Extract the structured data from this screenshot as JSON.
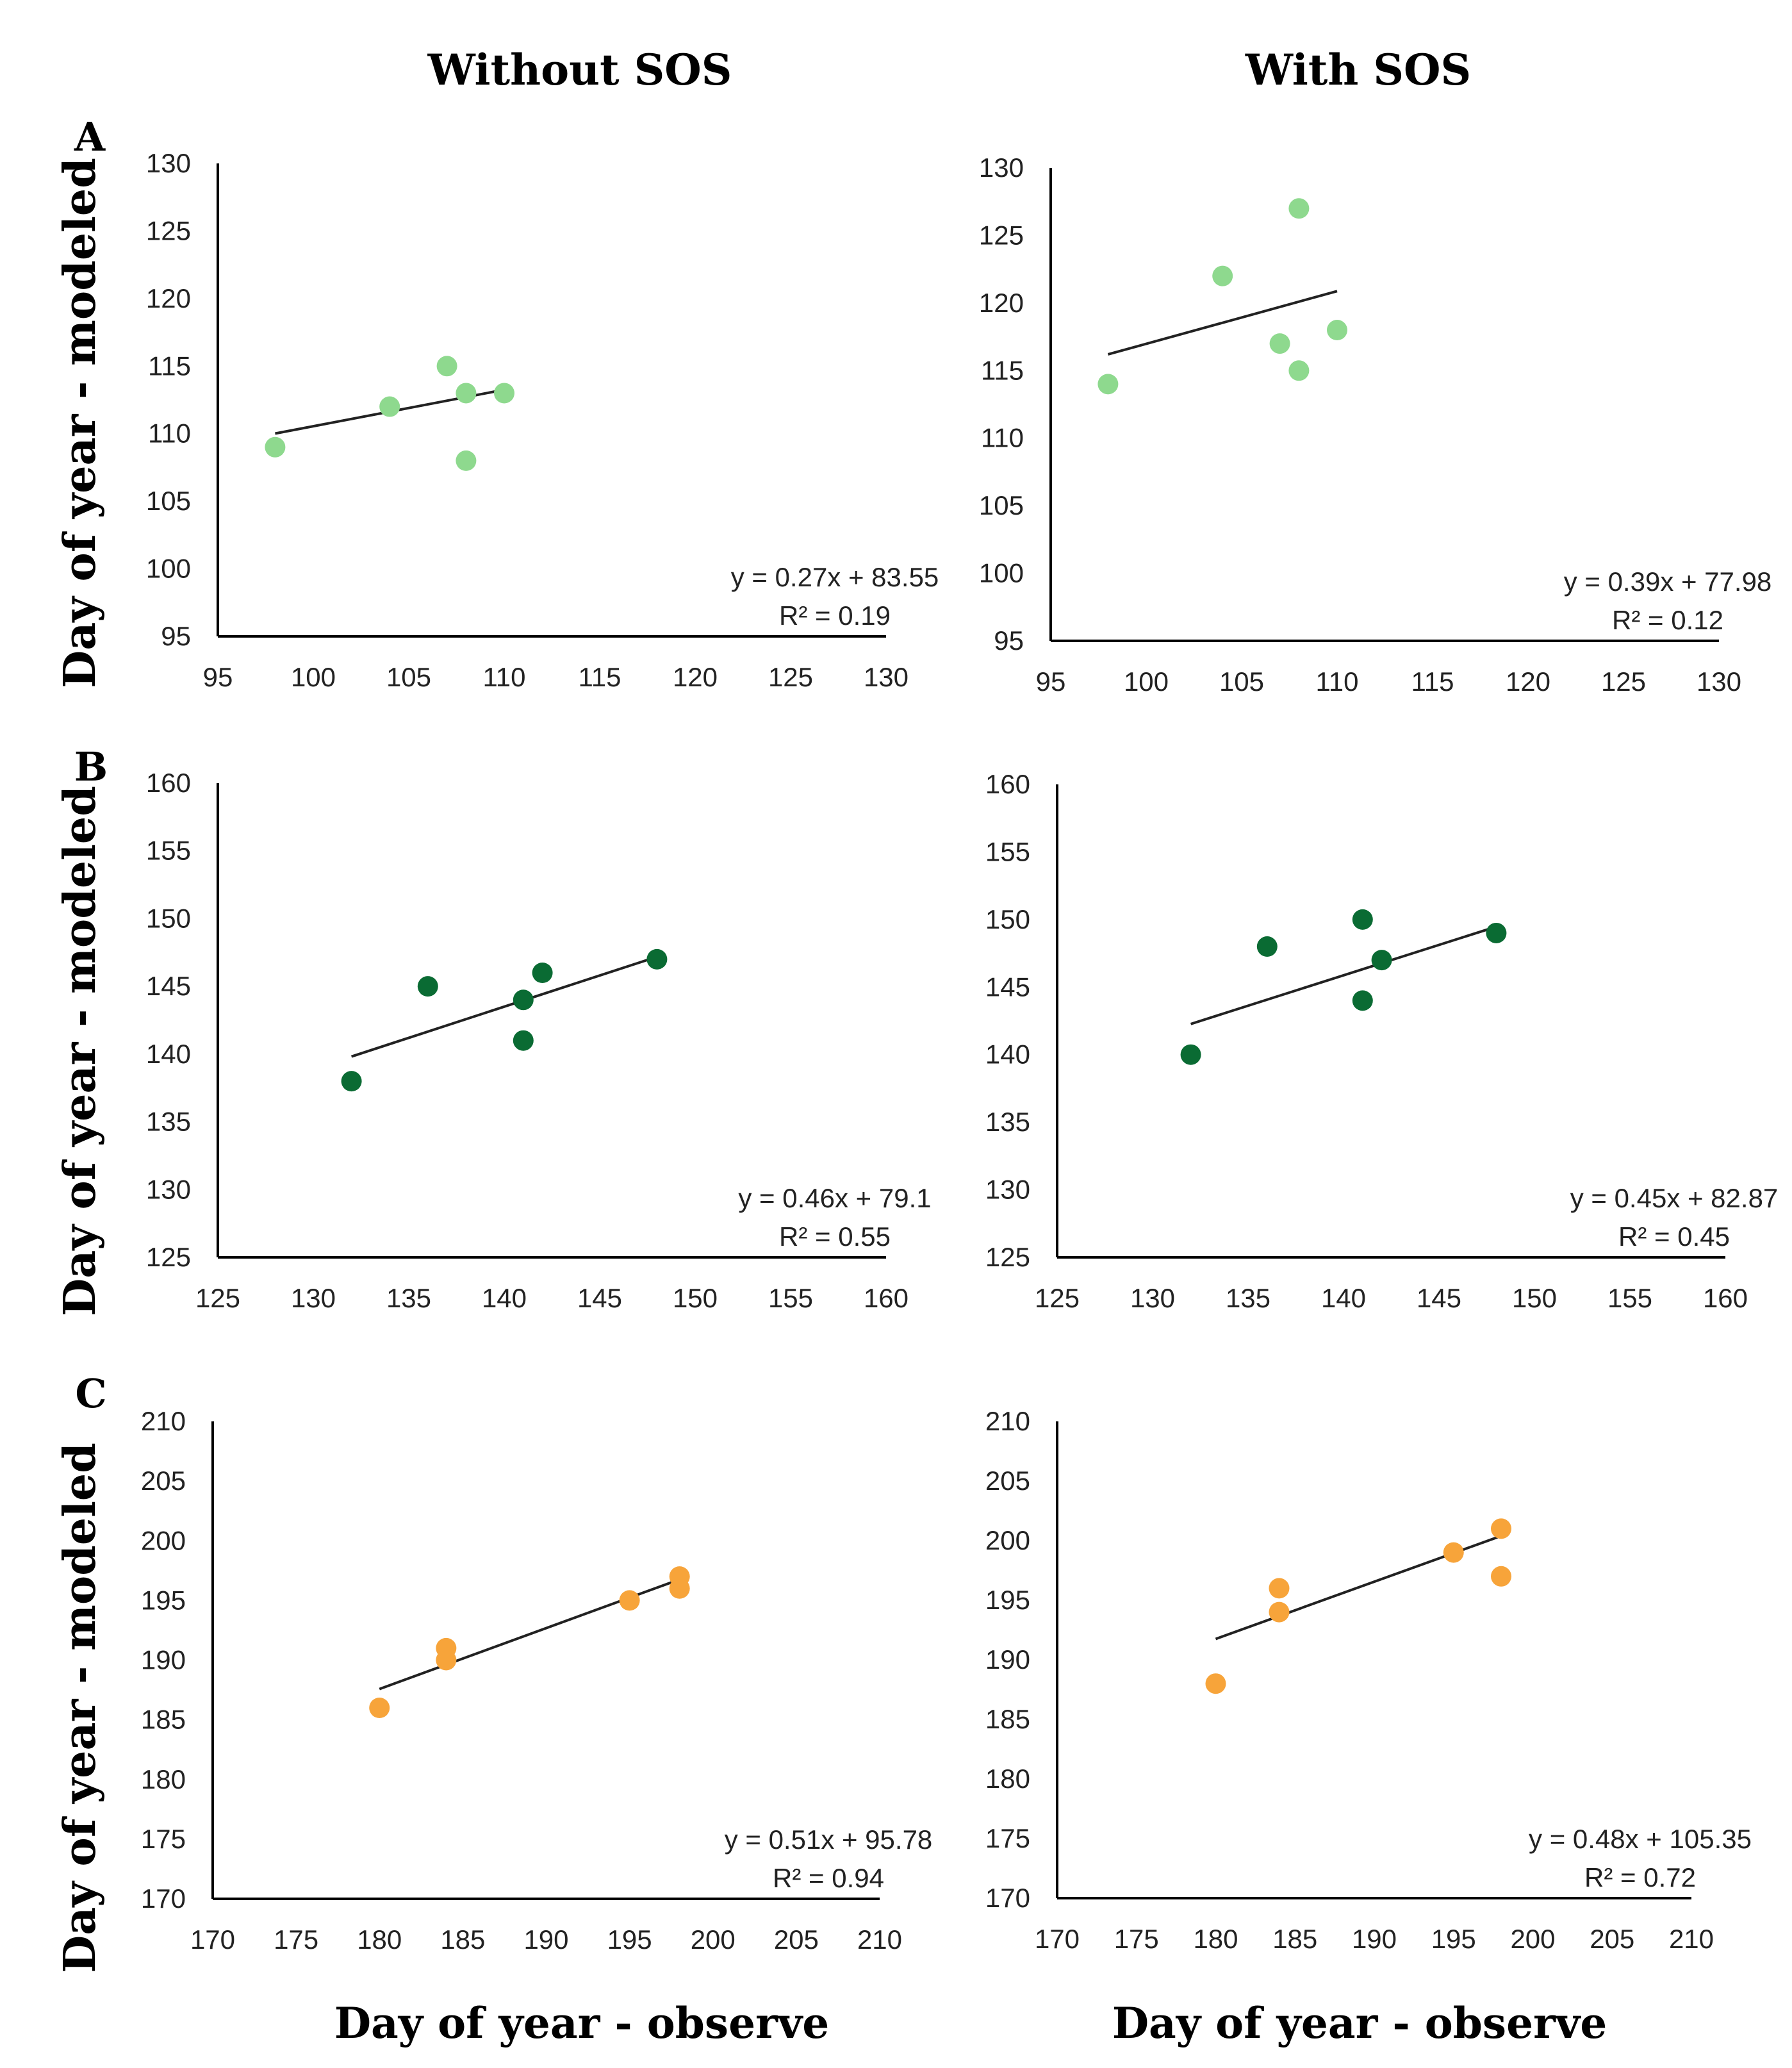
{
  "column_titles": {
    "left": "Without SOS",
    "right": "With SOS"
  },
  "panel_labels": [
    "A",
    "B",
    "C"
  ],
  "y_axis_label": "Day of year - modeled",
  "x_axis_label": "Day of year - observe",
  "colors": {
    "A": "#8ed98e",
    "B": "#0a6b33",
    "C": "#f7a43a",
    "trendline": "#222222"
  },
  "chart_data": [
    {
      "id": "A-without",
      "type": "scatter",
      "row": "A",
      "column": "Without SOS",
      "xlim": [
        95,
        130
      ],
      "ylim": [
        95,
        130
      ],
      "ticks": [
        95,
        100,
        105,
        110,
        115,
        120,
        125,
        130
      ],
      "tick_labels": [
        "95",
        "100",
        "105",
        "110",
        "115",
        "120",
        "125",
        "130"
      ],
      "points": [
        [
          98,
          109
        ],
        [
          104,
          112
        ],
        [
          107,
          115
        ],
        [
          108,
          113
        ],
        [
          108,
          108
        ],
        [
          110,
          113
        ]
      ],
      "trendline": {
        "x": [
          98,
          110
        ],
        "slope": 0.27,
        "intercept": 83.55
      },
      "equation": "y = 0.27x + 83.55",
      "r2": "R² = 0.19",
      "color": "#8ed98e"
    },
    {
      "id": "A-with",
      "type": "scatter",
      "row": "A",
      "column": "With SOS",
      "xlim": [
        95,
        130
      ],
      "ylim": [
        95,
        130
      ],
      "ticks": [
        95,
        100,
        105,
        110,
        115,
        120,
        125,
        130
      ],
      "tick_labels": [
        "95",
        "100",
        "105",
        "110",
        "115",
        "120",
        "125",
        "130"
      ],
      "points": [
        [
          98,
          114
        ],
        [
          104,
          122
        ],
        [
          107,
          117
        ],
        [
          108,
          127
        ],
        [
          108,
          115
        ],
        [
          110,
          118
        ]
      ],
      "trendline": {
        "x": [
          98,
          110
        ],
        "slope": 0.39,
        "intercept": 77.98
      },
      "equation": "y = 0.39x + 77.98",
      "r2": "R² = 0.12",
      "color": "#8ed98e"
    },
    {
      "id": "B-without",
      "type": "scatter",
      "row": "B",
      "column": "Without SOS",
      "xlim": [
        125,
        160
      ],
      "ylim": [
        125,
        160
      ],
      "ticks": [
        125,
        130,
        135,
        140,
        145,
        150,
        155,
        160
      ],
      "tick_labels": [
        "125",
        "130",
        "135",
        "140",
        "145",
        "150",
        "155",
        "160"
      ],
      "points": [
        [
          132,
          138
        ],
        [
          136,
          145
        ],
        [
          141,
          144
        ],
        [
          141,
          141
        ],
        [
          142,
          146
        ],
        [
          148,
          147
        ]
      ],
      "trendline": {
        "x": [
          132,
          148
        ],
        "slope": 0.46,
        "intercept": 79.1
      },
      "equation": "y = 0.46x + 79.1",
      "r2": "R² = 0.55",
      "color": "#0a6b33"
    },
    {
      "id": "B-with",
      "type": "scatter",
      "row": "B",
      "column": "With SOS",
      "xlim": [
        125,
        160
      ],
      "ylim": [
        125,
        160
      ],
      "ticks": [
        125,
        130,
        135,
        140,
        145,
        150,
        155,
        160
      ],
      "tick_labels": [
        "125",
        "130",
        "135",
        "140",
        "145",
        "150",
        "155",
        "160"
      ],
      "points": [
        [
          132,
          140
        ],
        [
          136,
          148
        ],
        [
          141,
          150
        ],
        [
          141,
          144
        ],
        [
          142,
          147
        ],
        [
          148,
          149
        ]
      ],
      "trendline": {
        "x": [
          132,
          148
        ],
        "slope": 0.45,
        "intercept": 82.87
      },
      "equation": "y = 0.45x + 82.87",
      "r2": "R² = 0.45",
      "color": "#0a6b33"
    },
    {
      "id": "C-without",
      "type": "scatter",
      "row": "C",
      "column": "Without SOS",
      "xlim": [
        170,
        210
      ],
      "ylim": [
        170,
        210
      ],
      "ticks": [
        170,
        175,
        180,
        185,
        190,
        195,
        200,
        205,
        210
      ],
      "tick_labels": [
        "170",
        "175",
        "180",
        "185",
        "190",
        "195",
        "200",
        "205",
        "210"
      ],
      "points": [
        [
          180,
          186
        ],
        [
          184,
          191
        ],
        [
          184,
          190
        ],
        [
          195,
          195
        ],
        [
          198,
          197
        ],
        [
          198,
          196
        ]
      ],
      "trendline": {
        "x": [
          180,
          198
        ],
        "slope": 0.51,
        "intercept": 95.78
      },
      "equation": "y = 0.51x + 95.78",
      "r2": "R² = 0.94",
      "color": "#f7a43a"
    },
    {
      "id": "C-with",
      "type": "scatter",
      "row": "C",
      "column": "With SOS",
      "xlim": [
        170,
        210
      ],
      "ylim": [
        170,
        210
      ],
      "ticks": [
        170,
        175,
        180,
        185,
        190,
        195,
        200,
        205,
        210
      ],
      "tick_labels": [
        "170",
        "175",
        "180",
        "185",
        "190",
        "195",
        "200",
        "205",
        "210"
      ],
      "points": [
        [
          180,
          188
        ],
        [
          184,
          196
        ],
        [
          184,
          194
        ],
        [
          195,
          199
        ],
        [
          198,
          201
        ],
        [
          198,
          197
        ]
      ],
      "trendline": {
        "x": [
          180,
          198
        ],
        "slope": 0.48,
        "intercept": 105.35
      },
      "equation": "y = 0.48x + 105.35",
      "r2": "R² = 0.72",
      "color": "#f7a43a"
    }
  ]
}
